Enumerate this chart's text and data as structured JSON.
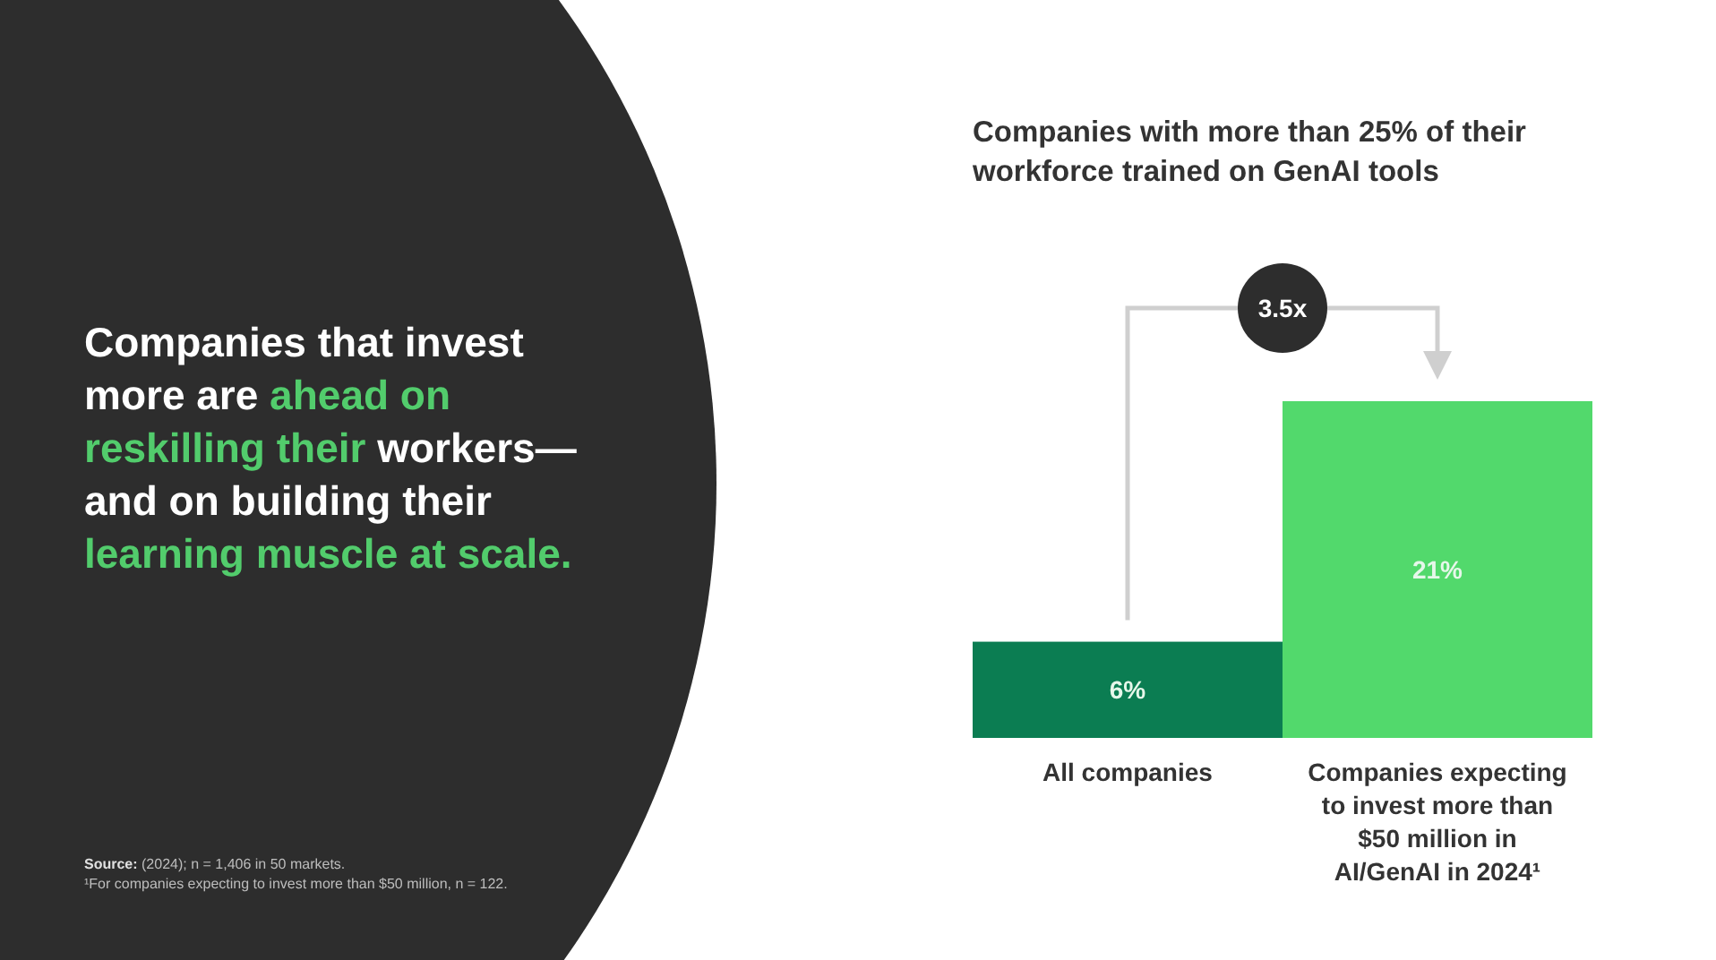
{
  "chart_data": {
    "type": "bar",
    "title": "Companies with more than 25% of their workforce trained on GenAI tools",
    "categories": [
      "All companies",
      "Companies expecting to invest more than $50 million in AI/GenAI in 2024¹"
    ],
    "values": [
      6,
      21
    ],
    "colors": [
      "#0b7d52",
      "#52d96c"
    ],
    "value_labels": [
      "6%",
      "21%"
    ],
    "annotations": [
      "3.5x",
      "Companies that invest",
      "more are",
      "ahead on",
      "reskilling their",
      "workers—",
      "and on building their",
      "learning muscle at scale.",
      "Source: (2024); n = 1,406 in 50 markets.",
      "¹For companies expecting to invest more than $50 million, n = 122."
    ]
  }
}
